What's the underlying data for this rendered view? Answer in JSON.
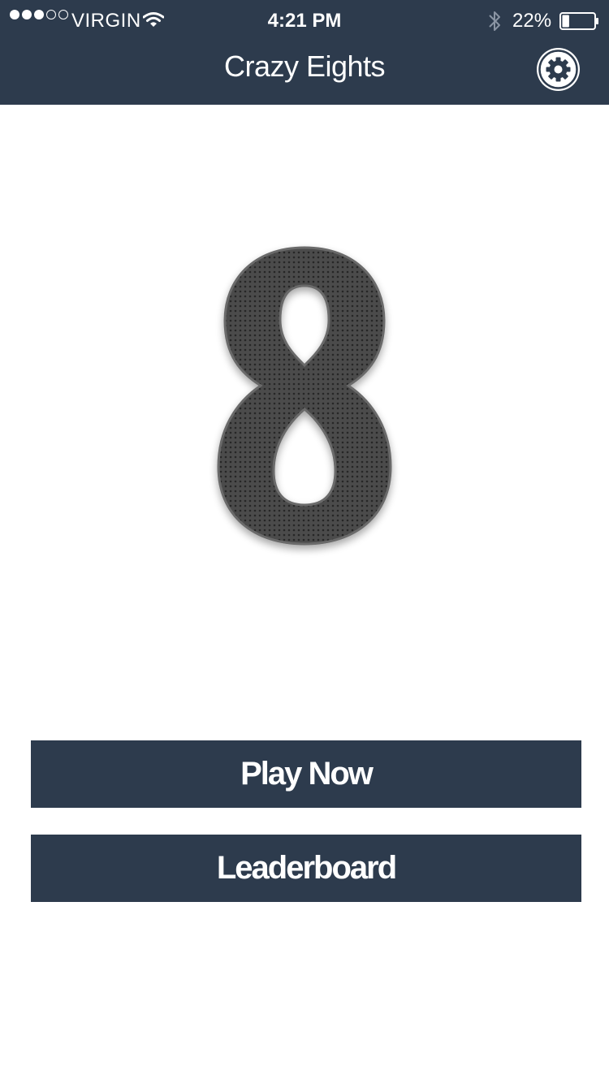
{
  "status_bar": {
    "signal_dots": [
      "full",
      "full",
      "full",
      "empty",
      "empty"
    ],
    "carrier": "VIRGIN",
    "wifi_icon": "wifi-icon",
    "time": "4:21 PM",
    "bluetooth_icon": "bluetooth-icon",
    "battery_percent": "22%",
    "battery_level": 0.22
  },
  "header": {
    "title": "Crazy Eights",
    "settings_icon": "gear-icon"
  },
  "logo": {
    "glyph": "8",
    "color": "#4a4a4a"
  },
  "actions": {
    "play_label": "Play Now",
    "leaderboard_label": "Leaderboard"
  },
  "colors": {
    "bar": "#2d3b4d",
    "background": "#ffffff",
    "text": "#ffffff"
  }
}
